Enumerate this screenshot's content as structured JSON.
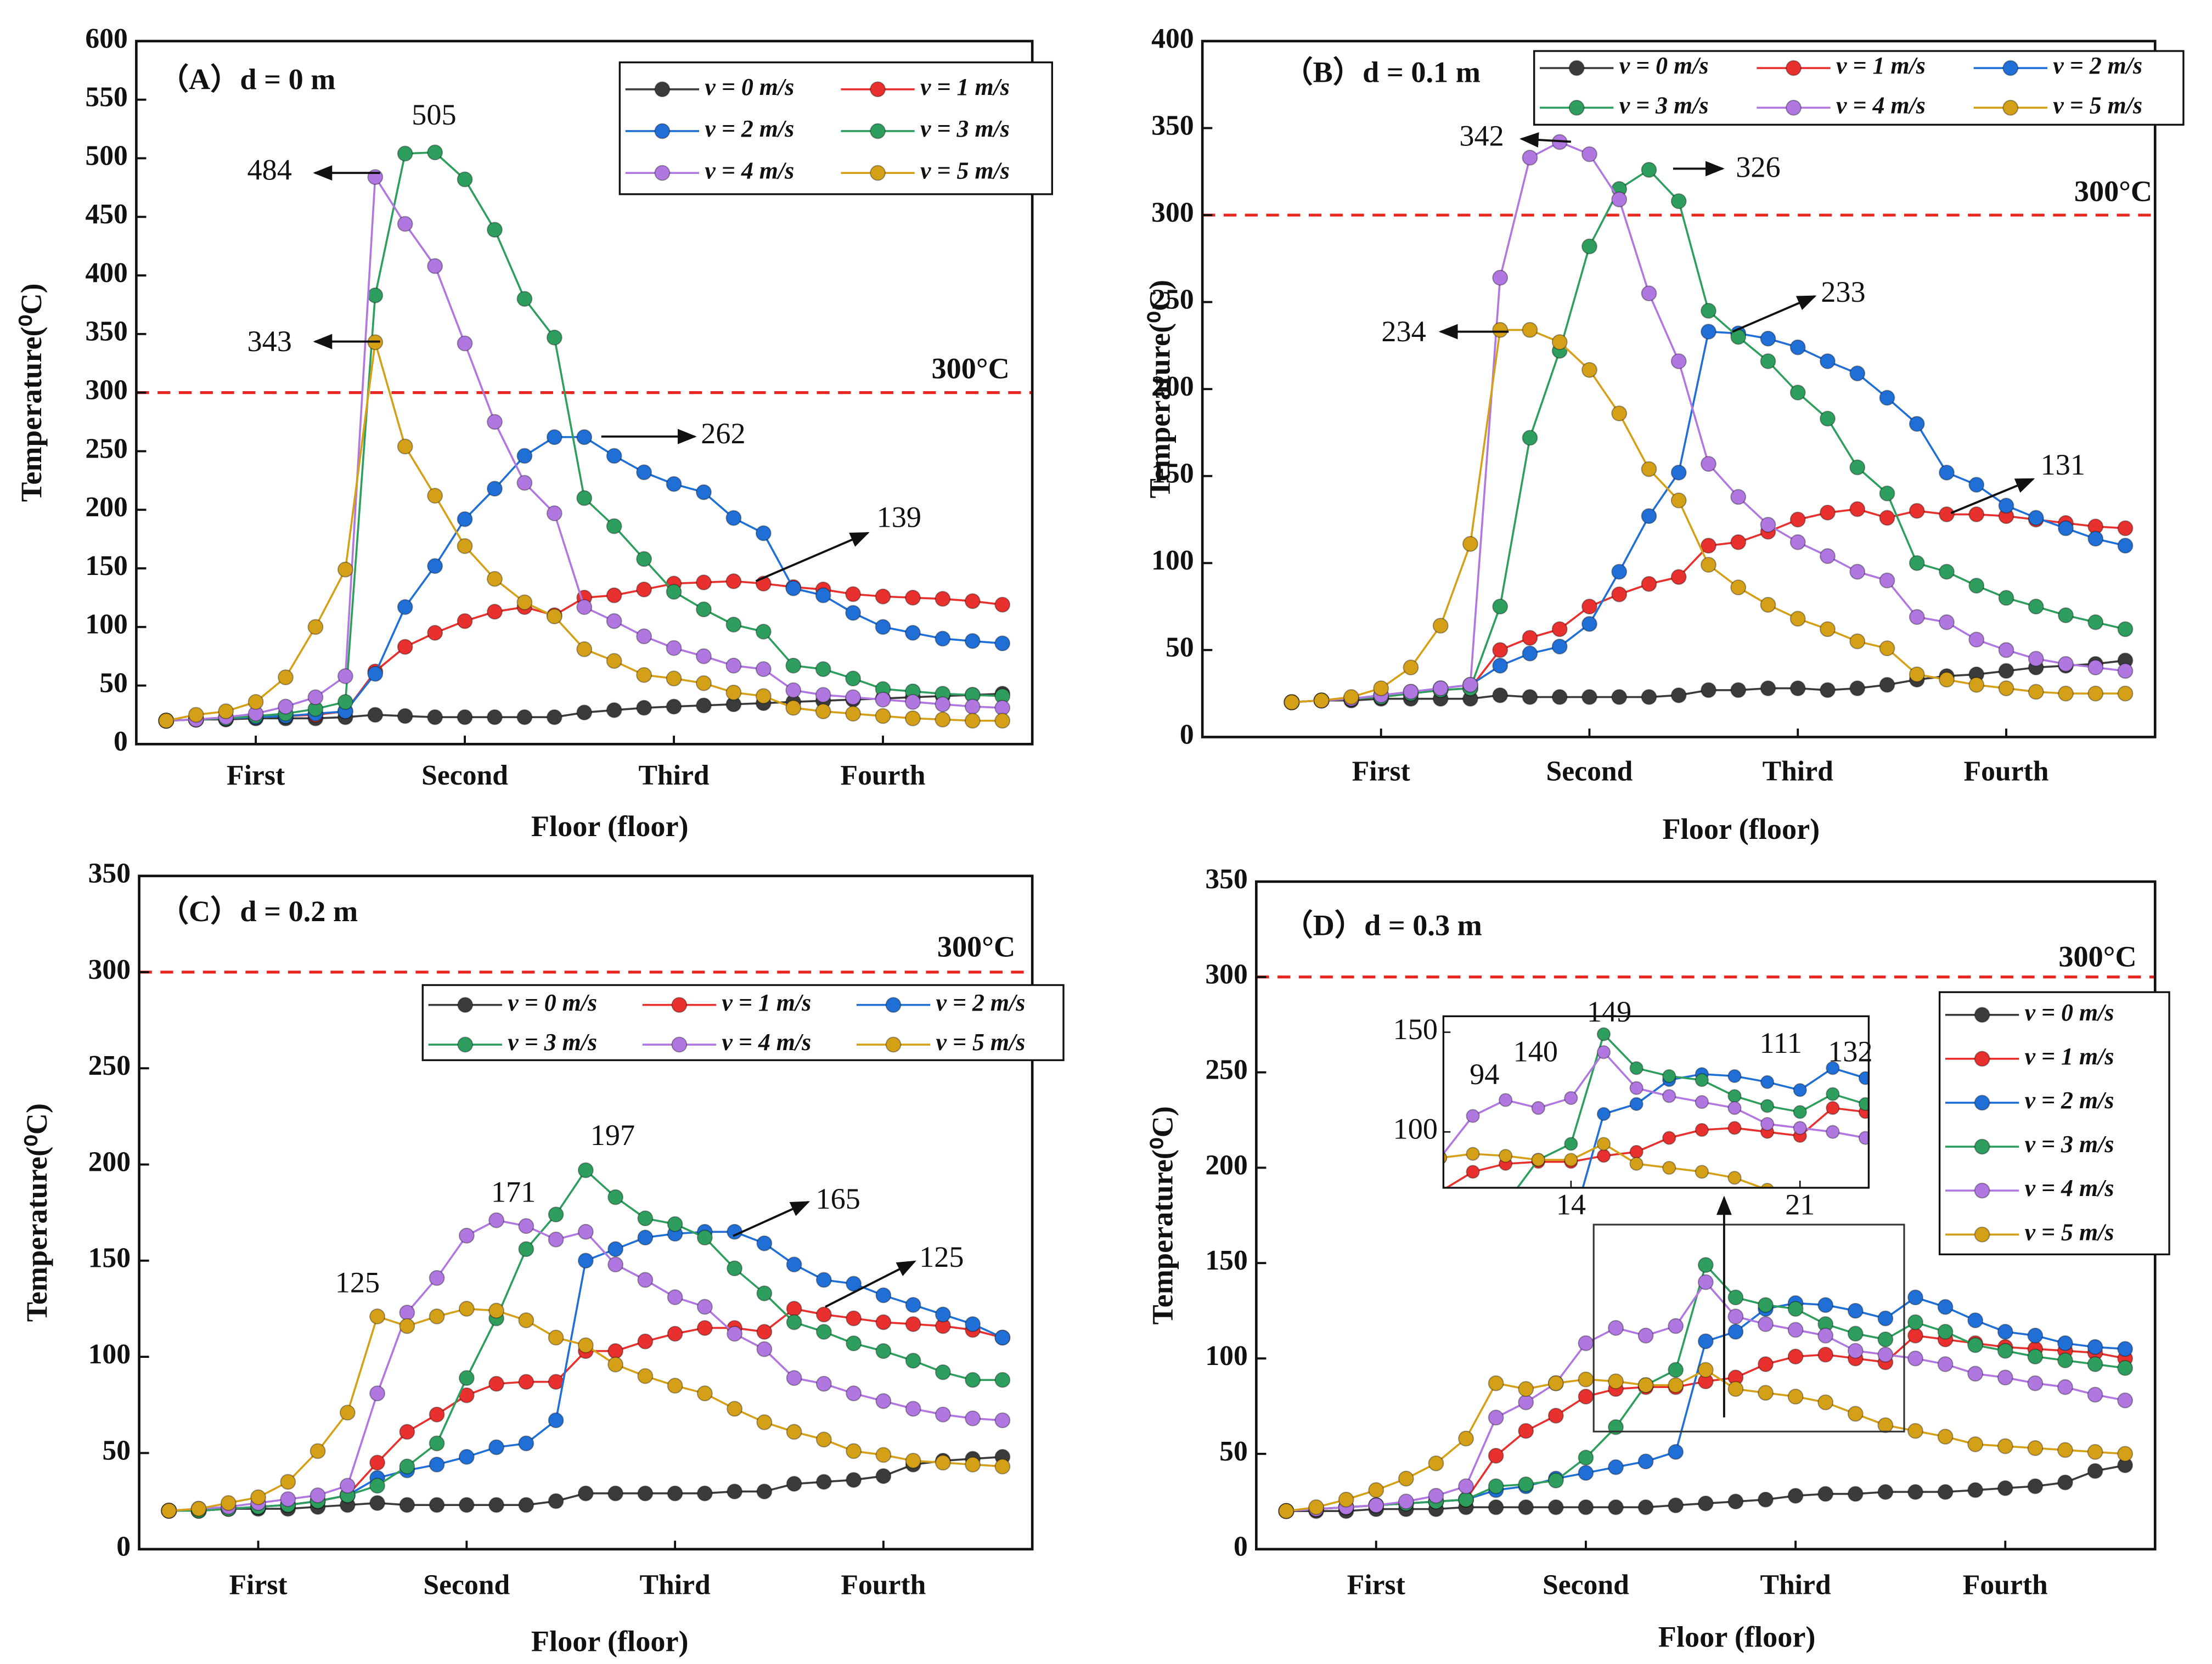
{
  "chart_data": [
    {
      "type": "line",
      "title": "（A）d = 0 m",
      "x_label": "Floor (floor)",
      "y_label": "Temperature(⁰C)",
      "x": [
        1,
        2,
        3,
        4,
        5,
        6,
        7,
        8,
        9,
        10,
        11,
        12,
        13,
        14,
        15,
        16,
        17,
        18,
        19,
        20,
        21,
        22,
        23,
        24,
        25,
        26,
        27,
        28,
        29
      ],
      "xlim": [
        0,
        30
      ],
      "xticks": [
        {
          "value": 4,
          "label": "First"
        },
        {
          "value": 11,
          "label": "Second"
        },
        {
          "value": 18,
          "label": "Third"
        },
        {
          "value": 25,
          "label": "Fourth"
        }
      ],
      "ylim": [
        0,
        600
      ],
      "yticks": [
        0,
        50,
        100,
        150,
        200,
        250,
        300,
        350,
        400,
        450,
        500,
        550,
        600
      ],
      "reference": {
        "value": 300,
        "label": "300°C",
        "color": "#e8261f"
      },
      "legend": {
        "position": "upper right",
        "columns": 2
      },
      "annotations": [
        505,
        484,
        343,
        262,
        139
      ],
      "series": [
        {
          "name": "v = 0 m/s",
          "color": "#3b3b3b",
          "values": [
            20,
            21,
            21,
            22,
            22,
            22,
            23,
            25,
            24,
            23,
            23,
            23,
            23,
            23,
            27,
            29,
            31,
            32,
            33,
            34,
            35,
            36,
            37,
            38,
            39,
            40,
            41,
            42,
            43
          ]
        },
        {
          "name": "v = 1 m/s",
          "color": "#e8302e",
          "values": [
            20,
            21,
            22,
            23,
            24,
            25,
            28,
            62,
            83,
            95,
            105,
            113,
            117,
            110,
            125,
            127,
            132,
            137,
            138,
            139,
            137,
            134,
            132,
            128,
            126,
            125,
            124,
            122,
            119
          ]
        },
        {
          "name": "v = 2 m/s",
          "color": "#1f6fd6",
          "values": [
            20,
            21,
            22,
            23,
            24,
            26,
            28,
            60,
            117,
            152,
            192,
            218,
            246,
            262,
            262,
            246,
            232,
            222,
            215,
            193,
            180,
            133,
            127,
            112,
            100,
            95,
            90,
            88,
            86
          ]
        },
        {
          "name": "v = 3 m/s",
          "color": "#2e9e5e",
          "values": [
            20,
            21,
            22,
            24,
            26,
            30,
            36,
            383,
            504,
            505,
            482,
            439,
            380,
            347,
            210,
            186,
            158,
            130,
            115,
            102,
            96,
            67,
            64,
            56,
            47,
            45,
            43,
            42,
            41
          ]
        },
        {
          "name": "v = 4 m/s",
          "color": "#b077e0",
          "values": [
            20,
            21,
            23,
            26,
            32,
            40,
            58,
            484,
            444,
            408,
            342,
            275,
            223,
            197,
            117,
            105,
            92,
            82,
            75,
            67,
            64,
            46,
            42,
            40,
            38,
            36,
            34,
            32,
            31
          ]
        },
        {
          "name": "v = 5 m/s",
          "color": "#d4a017",
          "values": [
            20,
            25,
            28,
            36,
            57,
            100,
            149,
            343,
            254,
            212,
            169,
            141,
            121,
            109,
            81,
            71,
            59,
            56,
            52,
            44,
            41,
            31,
            28,
            26,
            24,
            22,
            21,
            20,
            20
          ]
        }
      ]
    },
    {
      "type": "line",
      "title": "（B）d = 0.1 m",
      "x_label": "Floor (floor)",
      "y_label": "Temperature(⁰C)",
      "x": [
        1,
        2,
        3,
        4,
        5,
        6,
        7,
        8,
        9,
        10,
        11,
        12,
        13,
        14,
        15,
        16,
        17,
        18,
        19,
        20,
        21,
        22,
        23,
        24,
        25,
        26,
        27,
        28,
        29
      ],
      "xlim": [
        -2,
        30
      ],
      "xticks": [
        {
          "value": 4,
          "label": "First"
        },
        {
          "value": 11,
          "label": "Second"
        },
        {
          "value": 18,
          "label": "Third"
        },
        {
          "value": 25,
          "label": "Fourth"
        }
      ],
      "ylim": [
        0,
        400
      ],
      "yticks": [
        0,
        50,
        100,
        150,
        200,
        250,
        300,
        350,
        400
      ],
      "reference": {
        "value": 300,
        "label": "300°C",
        "color": "#e8261f"
      },
      "legend": {
        "position": "upper center",
        "columns": 3
      },
      "annotations": [
        342,
        326,
        234,
        233,
        131
      ],
      "series": [
        {
          "name": "v = 0 m/s",
          "color": "#3b3b3b",
          "values": [
            20,
            21,
            21,
            22,
            22,
            22,
            22,
            24,
            23,
            23,
            23,
            23,
            23,
            24,
            27,
            27,
            28,
            28,
            27,
            28,
            30,
            33,
            35,
            36,
            38,
            40,
            41,
            42,
            44
          ]
        },
        {
          "name": "v = 1 m/s",
          "color": "#e8302e",
          "values": [
            20,
            21,
            22,
            23,
            25,
            27,
            28,
            50,
            57,
            62,
            75,
            82,
            88,
            92,
            110,
            112,
            118,
            125,
            129,
            131,
            126,
            130,
            128,
            128,
            127,
            125,
            123,
            121,
            120
          ]
        },
        {
          "name": "v = 2 m/s",
          "color": "#1f6fd6",
          "values": [
            20,
            21,
            22,
            24,
            26,
            28,
            30,
            41,
            48,
            52,
            65,
            95,
            127,
            152,
            233,
            232,
            229,
            224,
            216,
            209,
            195,
            180,
            152,
            145,
            133,
            126,
            120,
            114,
            110
          ]
        },
        {
          "name": "v = 3 m/s",
          "color": "#2e9e5e",
          "values": [
            20,
            21,
            22,
            23,
            25,
            27,
            28,
            75,
            172,
            222,
            282,
            315,
            326,
            308,
            245,
            230,
            216,
            198,
            183,
            155,
            140,
            100,
            95,
            87,
            80,
            75,
            70,
            66,
            62
          ]
        },
        {
          "name": "v = 4 m/s",
          "color": "#b077e0",
          "values": [
            20,
            21,
            22,
            24,
            26,
            28,
            30,
            264,
            333,
            342,
            335,
            309,
            255,
            216,
            157,
            138,
            122,
            112,
            104,
            95,
            90,
            69,
            66,
            56,
            50,
            45,
            42,
            40,
            38
          ]
        },
        {
          "name": "v = 5 m/s",
          "color": "#d4a017",
          "values": [
            20,
            21,
            23,
            28,
            40,
            64,
            111,
            234,
            234,
            227,
            211,
            186,
            154,
            136,
            99,
            86,
            76,
            68,
            62,
            55,
            51,
            36,
            33,
            30,
            28,
            26,
            25,
            25,
            25
          ]
        }
      ]
    },
    {
      "type": "line",
      "title": "（C）d = 0.2 m",
      "x_label": "Floor (floor)",
      "y_label": "Temperature(⁰C)",
      "x": [
        1,
        2,
        3,
        4,
        5,
        6,
        7,
        8,
        9,
        10,
        11,
        12,
        13,
        14,
        15,
        16,
        17,
        18,
        19,
        20,
        21,
        22,
        23,
        24,
        25,
        26,
        27,
        28,
        29
      ],
      "xlim": [
        0,
        30
      ],
      "xticks": [
        {
          "value": 4,
          "label": "First"
        },
        {
          "value": 11,
          "label": "Second"
        },
        {
          "value": 18,
          "label": "Third"
        },
        {
          "value": 25,
          "label": "Fourth"
        }
      ],
      "ylim": [
        0,
        350
      ],
      "yticks": [
        0,
        50,
        100,
        150,
        200,
        250,
        300,
        350
      ],
      "reference": {
        "value": 300,
        "label": "300°C",
        "color": "#e8261f"
      },
      "legend": {
        "position": "upper right",
        "columns": 3
      },
      "annotations": [
        197,
        171,
        125,
        165,
        125
      ],
      "series": [
        {
          "name": "v = 0 m/s",
          "color": "#3b3b3b",
          "values": [
            20,
            20,
            21,
            21,
            21,
            22,
            23,
            24,
            23,
            23,
            23,
            23,
            23,
            25,
            29,
            29,
            29,
            29,
            29,
            30,
            30,
            34,
            35,
            36,
            38,
            44,
            46,
            47,
            48
          ]
        },
        {
          "name": "v = 1 m/s",
          "color": "#e8302e",
          "values": [
            20,
            20,
            21,
            22,
            23,
            25,
            28,
            45,
            61,
            70,
            80,
            86,
            87,
            87,
            103,
            103,
            108,
            112,
            115,
            115,
            113,
            125,
            122,
            120,
            118,
            117,
            116,
            114,
            110
          ]
        },
        {
          "name": "v = 2 m/s",
          "color": "#1f6fd6",
          "values": [
            20,
            20,
            21,
            22,
            23,
            25,
            28,
            37,
            41,
            44,
            48,
            53,
            55,
            67,
            150,
            156,
            162,
            164,
            165,
            165,
            159,
            148,
            140,
            138,
            132,
            127,
            122,
            117,
            110
          ]
        },
        {
          "name": "v = 3 m/s",
          "color": "#2e9e5e",
          "values": [
            20,
            20,
            21,
            22,
            23,
            25,
            28,
            33,
            43,
            55,
            89,
            120,
            156,
            174,
            197,
            183,
            172,
            169,
            162,
            146,
            133,
            118,
            113,
            107,
            103,
            98,
            92,
            88,
            88
          ]
        },
        {
          "name": "v = 4 m/s",
          "color": "#b077e0",
          "values": [
            20,
            21,
            22,
            24,
            26,
            28,
            33,
            81,
            123,
            141,
            163,
            171,
            168,
            161,
            165,
            148,
            140,
            131,
            126,
            112,
            104,
            89,
            86,
            81,
            77,
            73,
            70,
            68,
            67
          ]
        },
        {
          "name": "v = 5 m/s",
          "color": "#d4a017",
          "values": [
            20,
            21,
            24,
            27,
            35,
            51,
            71,
            121,
            116,
            121,
            125,
            124,
            119,
            110,
            106,
            96,
            90,
            85,
            81,
            73,
            66,
            61,
            57,
            51,
            49,
            46,
            45,
            44,
            43
          ]
        }
      ]
    },
    {
      "type": "line",
      "title": "（D）d = 0.3 m",
      "x_label": "Floor (floor)",
      "y_label": "Temperature(⁰C)",
      "x": [
        1,
        2,
        3,
        4,
        5,
        6,
        7,
        8,
        9,
        10,
        11,
        12,
        13,
        14,
        15,
        16,
        17,
        18,
        19,
        20,
        21,
        22,
        23,
        24,
        25,
        26,
        27,
        28,
        29
      ],
      "xlim": [
        0,
        30
      ],
      "xticks": [
        {
          "value": 4,
          "label": "First"
        },
        {
          "value": 11,
          "label": "Second"
        },
        {
          "value": 18,
          "label": "Third"
        },
        {
          "value": 25,
          "label": "Fourth"
        }
      ],
      "ylim": [
        0,
        350
      ],
      "yticks": [
        0,
        50,
        100,
        150,
        200,
        250,
        300,
        350
      ],
      "reference": {
        "value": 300,
        "label": "300°C",
        "color": "#e8261f"
      },
      "legend": {
        "position": "right",
        "columns": 1
      },
      "annotations": [],
      "inset": {
        "xlim": [
          10.1,
          23.1
        ],
        "xticks": [
          14,
          21
        ],
        "ylim": [
          72,
          158
        ],
        "yticks": [
          100,
          150
        ],
        "annotations": [
          149,
          140,
          94,
          111,
          132
        ]
      },
      "series": [
        {
          "name": "v = 0 m/s",
          "color": "#3b3b3b",
          "values": [
            20,
            20,
            20,
            21,
            21,
            21,
            22,
            22,
            22,
            22,
            22,
            22,
            22,
            23,
            24,
            25,
            26,
            28,
            29,
            29,
            30,
            30,
            30,
            31,
            32,
            33,
            35,
            41,
            44
          ]
        },
        {
          "name": "v = 1 m/s",
          "color": "#e8302e",
          "values": [
            20,
            21,
            22,
            23,
            24,
            25,
            26,
            49,
            62,
            70,
            80,
            84,
            85,
            85,
            88,
            90,
            97,
            101,
            102,
            100,
            98,
            112,
            110,
            108,
            106,
            105,
            104,
            103,
            100
          ]
        },
        {
          "name": "v = 2 m/s",
          "color": "#1f6fd6",
          "values": [
            20,
            21,
            22,
            23,
            24,
            25,
            26,
            31,
            33,
            37,
            40,
            43,
            46,
            51,
            109,
            114,
            126,
            129,
            128,
            125,
            121,
            132,
            127,
            120,
            114,
            112,
            108,
            106,
            105
          ]
        },
        {
          "name": "v = 3 m/s",
          "color": "#2e9e5e",
          "values": [
            20,
            21,
            22,
            23,
            24,
            25,
            26,
            33,
            34,
            36,
            48,
            64,
            86,
            94,
            149,
            132,
            128,
            126,
            118,
            113,
            110,
            119,
            114,
            107,
            104,
            101,
            99,
            97,
            95
          ]
        },
        {
          "name": "v = 4 m/s",
          "color": "#b077e0",
          "values": [
            20,
            21,
            22,
            23,
            25,
            28,
            33,
            69,
            77,
            87,
            108,
            116,
            112,
            117,
            140,
            122,
            118,
            115,
            112,
            104,
            102,
            100,
            97,
            92,
            90,
            87,
            85,
            81,
            78
          ]
        },
        {
          "name": "v = 5 m/s",
          "color": "#d4a017",
          "values": [
            20,
            22,
            26,
            31,
            37,
            45,
            58,
            87,
            84,
            87,
            89,
            88,
            86,
            86,
            94,
            84,
            82,
            80,
            77,
            71,
            65,
            62,
            59,
            55,
            54,
            53,
            52,
            51,
            50
          ]
        }
      ]
    }
  ]
}
